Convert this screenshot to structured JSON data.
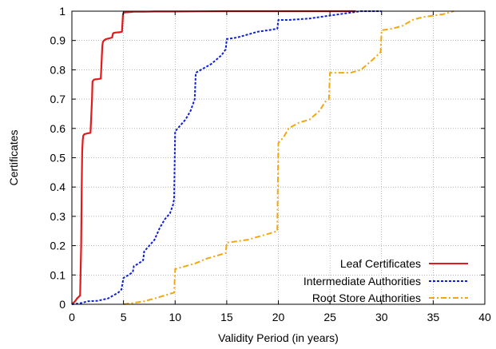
{
  "chart_data": {
    "type": "line",
    "title": "",
    "xlabel": "Validity Period (in years)",
    "ylabel": "Certificates",
    "xlim": [
      0,
      40
    ],
    "ylim": [
      0,
      1
    ],
    "xticks": [
      "0",
      "5",
      "10",
      "15",
      "20",
      "25",
      "30",
      "35",
      "40"
    ],
    "yticks": [
      "0",
      "0.1",
      "0.2",
      "0.3",
      "0.4",
      "0.5",
      "0.6",
      "0.7",
      "0.8",
      "0.9",
      "1"
    ],
    "grid": true,
    "legend_position": "bottom-right",
    "series": [
      {
        "name": "Leaf Certificates",
        "color": "#e31a1c",
        "dash": "solid",
        "x": [
          0,
          0.3,
          0.5,
          0.8,
          0.9,
          0.95,
          1.0,
          1.05,
          1.1,
          1.2,
          1.5,
          1.8,
          1.95,
          2.0,
          2.1,
          2.2,
          2.5,
          2.8,
          2.95,
          3.0,
          3.1,
          3.3,
          3.6,
          3.9,
          3.95,
          4.0,
          4.2,
          4.6,
          4.85,
          4.95,
          5.0,
          5.2,
          5.6,
          6.0,
          7.0,
          8.0,
          10,
          15,
          20,
          27.5
        ],
        "y": [
          0,
          0.01,
          0.02,
          0.03,
          0.2,
          0.4,
          0.52,
          0.56,
          0.575,
          0.58,
          0.583,
          0.585,
          0.7,
          0.76,
          0.765,
          0.767,
          0.768,
          0.77,
          0.88,
          0.895,
          0.9,
          0.905,
          0.907,
          0.91,
          0.92,
          0.925,
          0.927,
          0.928,
          0.93,
          0.99,
          0.995,
          0.996,
          0.997,
          0.998,
          0.998,
          0.999,
          0.999,
          1.0,
          1.0,
          1.0
        ]
      },
      {
        "name": "Intermediate Authorities",
        "color": "#0b1fd6",
        "dash": "dotted",
        "x": [
          0,
          0.5,
          1.0,
          1.5,
          2.5,
          3.5,
          4.5,
          4.8,
          4.9,
          5.0,
          5.5,
          5.9,
          6.0,
          6.5,
          6.9,
          7.0,
          7.5,
          8.0,
          8.5,
          9.0,
          9.5,
          9.8,
          9.9,
          10.0,
          10.5,
          11.0,
          11.5,
          11.9,
          12.0,
          12.5,
          13.5,
          14.5,
          14.9,
          15.0,
          16.0,
          17.0,
          18.0,
          19.0,
          19.9,
          20.0,
          21.0,
          23.0,
          25.0,
          27.0,
          28.0,
          30.0
        ],
        "y": [
          0,
          0.002,
          0.005,
          0.01,
          0.012,
          0.02,
          0.04,
          0.05,
          0.07,
          0.09,
          0.1,
          0.11,
          0.13,
          0.14,
          0.15,
          0.18,
          0.2,
          0.22,
          0.26,
          0.29,
          0.31,
          0.34,
          0.36,
          0.59,
          0.61,
          0.63,
          0.66,
          0.7,
          0.79,
          0.8,
          0.82,
          0.85,
          0.87,
          0.905,
          0.91,
          0.92,
          0.93,
          0.935,
          0.94,
          0.97,
          0.97,
          0.975,
          0.985,
          0.995,
          1.0,
          1.0
        ]
      },
      {
        "name": "Root Store Authorities",
        "color": "#f2a80c",
        "dash": "dashdot",
        "x": [
          5.0,
          6.0,
          7.0,
          8.0,
          9.0,
          9.9,
          10.0,
          11.0,
          12.0,
          13.0,
          14.0,
          14.9,
          15.0,
          16.0,
          17.0,
          18.0,
          19.0,
          19.9,
          20.0,
          20.5,
          21.0,
          22.0,
          23.0,
          24.0,
          24.5,
          24.9,
          25.0,
          26.0,
          27.0,
          28.0,
          29.0,
          29.9,
          30.0,
          31.0,
          32.0,
          33.0,
          34.0,
          35.0,
          36.0,
          37.0
        ],
        "y": [
          0.0,
          0.005,
          0.01,
          0.02,
          0.03,
          0.04,
          0.12,
          0.13,
          0.14,
          0.155,
          0.165,
          0.175,
          0.21,
          0.215,
          0.22,
          0.23,
          0.24,
          0.25,
          0.55,
          0.57,
          0.6,
          0.62,
          0.63,
          0.66,
          0.69,
          0.7,
          0.79,
          0.79,
          0.79,
          0.8,
          0.83,
          0.86,
          0.935,
          0.94,
          0.95,
          0.97,
          0.98,
          0.985,
          0.99,
          1.0
        ]
      }
    ]
  }
}
